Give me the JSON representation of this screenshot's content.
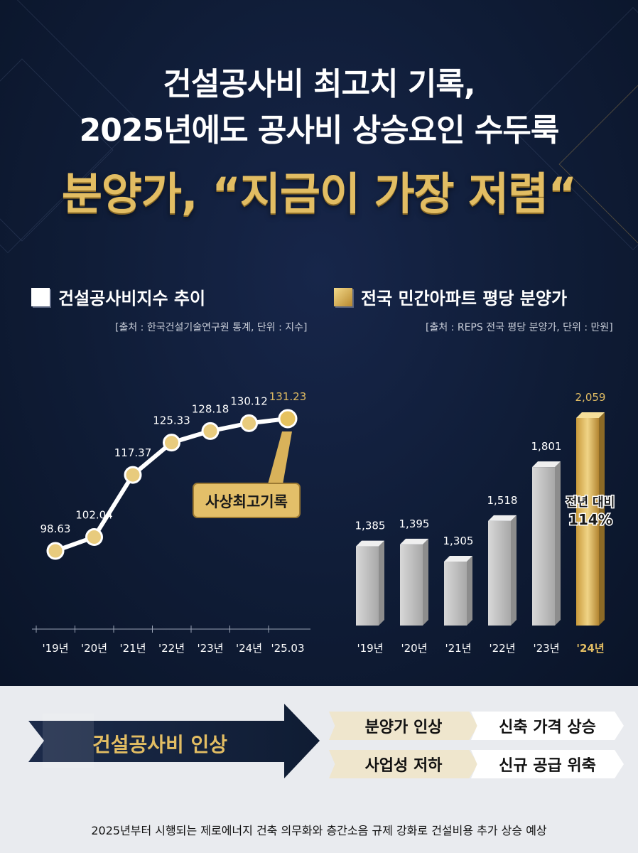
{
  "header": {
    "line1": "건설공사비 최고치 기록,",
    "line2": "2025년에도 공사비 상승요인 수두룩",
    "line3": "분양가, “지금이 가장 저렴“"
  },
  "colors": {
    "navy": "#0f1c33",
    "gold": "#e2bd63",
    "bar_gray": "#c9c9c9",
    "white": "#ffffff"
  },
  "chart_data": [
    {
      "type": "line",
      "legend": "건설공사비지수 추이",
      "source": "[출처 : 한국건설기술연구원 통계, 단위 : 지수]",
      "categories": [
        "'19년",
        "'20년",
        "'21년",
        "'22년",
        "'23년",
        "'24년",
        "'25.03"
      ],
      "values": [
        98.63,
        102.04,
        117.37,
        125.33,
        128.18,
        130.12,
        131.23
      ],
      "value_labels": [
        "98.63",
        "102.04",
        "117.37",
        "125.33",
        "128.18",
        "130.12",
        "131.23"
      ],
      "callout": "사상최고기록",
      "highlight_index": 6
    },
    {
      "type": "bar",
      "legend": "전국 민간아파트 평당 분양가",
      "source": "[출처 : REPS 전국 평당 분양가, 단위 : 만원]",
      "categories": [
        "'19년",
        "'20년",
        "'21년",
        "'22년",
        "'23년",
        "'24년"
      ],
      "values": [
        1385,
        1395,
        1305,
        1518,
        1801,
        2059
      ],
      "value_labels": [
        "1,385",
        "1,395",
        "1,305",
        "1,518",
        "1,801",
        "2,059"
      ],
      "highlight_index": 5,
      "callout": [
        "전년 대비",
        "114%"
      ]
    }
  ],
  "flow": {
    "main": "건설공사비 인상",
    "effects": [
      "분양가 인상",
      "신축 가격 상승",
      "사업성 저하",
      "신규 공급 위축"
    ]
  },
  "footnote": "2025년부터 시행되는 제로에너지 건축 의무화와 층간소음 규제 강화로 건설비용 추가 상승 예상"
}
